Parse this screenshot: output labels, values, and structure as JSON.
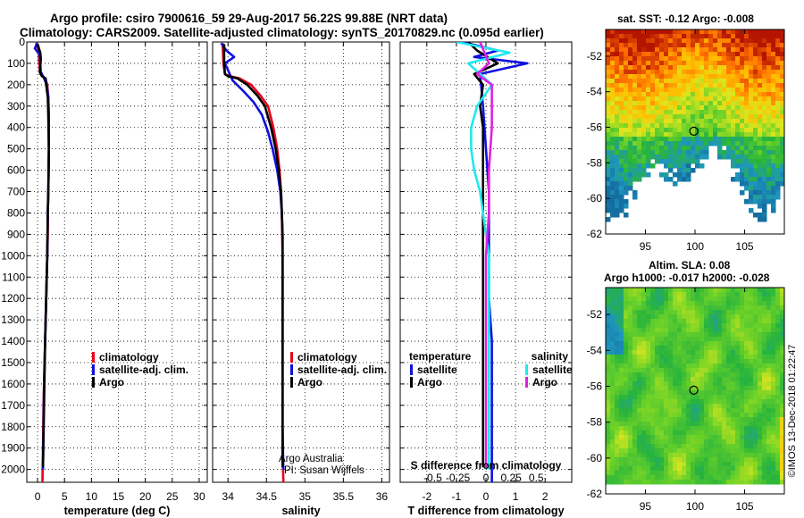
{
  "header": {
    "title_line1": "Argo profile: csiro 7900616_59 29-Aug-2017 56.22S 99.88E (NRT data)",
    "title_line2": "Climatology: CARS2009. Satellite-adjusted climatology: synTS_20170829.nc (0.095d earlier)"
  },
  "credits": {
    "line1": "Argo Australia",
    "line2": "PI: Susan Wijffels",
    "stamp": "©IMOS 13-Dec-2018 01:22:47"
  },
  "colors": {
    "climatology": "#e8001a",
    "satellite": "#1010e0",
    "argo": "#000000",
    "sat_salinity": "#20e8f0",
    "argo_salinity": "#e020e0"
  },
  "chart_data": [
    {
      "type": "line",
      "id": "temperature",
      "xlabel": "temperature (deg C)",
      "ylabel": "",
      "xlim": [
        -2,
        31.5
      ],
      "ylim": [
        2060,
        0
      ],
      "x_ticks": [
        0,
        5,
        10,
        15,
        20,
        25,
        30
      ],
      "x_tick_labels": [
        "0",
        "5",
        "10",
        "15",
        "20",
        "25",
        "30"
      ],
      "y_ticks": [
        0,
        100,
        200,
        300,
        400,
        500,
        600,
        700,
        800,
        900,
        1000,
        1100,
        1200,
        1300,
        1400,
        1500,
        1600,
        1700,
        1800,
        1900,
        2000
      ],
      "y_tick_labels": [
        "0",
        "100",
        "200",
        "300",
        "400",
        "500",
        "600",
        "700",
        "800",
        "900",
        "1000",
        "1100",
        "1200",
        "1300",
        "1400",
        "1500",
        "1600",
        "1700",
        "1800",
        "1900",
        "2000"
      ],
      "grid": true,
      "legend": [
        "climatology",
        "satellite-adj. clim.",
        "Argo"
      ],
      "legend_position": "center-right",
      "series": [
        {
          "name": "climatology",
          "color": "#e8001a",
          "x": [
            -0.3,
            0.2,
            0.3,
            0.5,
            1.4,
            1.8,
            2.0,
            2.1,
            2.1,
            2.0,
            1.9,
            1.9,
            1.8,
            1.7,
            1.6,
            1.5,
            1.4,
            1.3,
            1.2,
            1.1,
            1.0,
            0.9
          ],
          "y": [
            5,
            40,
            100,
            150,
            170,
            200,
            260,
            350,
            500,
            700,
            800,
            900,
            1000,
            1100,
            1200,
            1300,
            1400,
            1500,
            1600,
            1700,
            1900,
            2060
          ]
        },
        {
          "name": "satellite-adj. clim.",
          "color": "#1010e0",
          "x": [
            -0.1,
            -0.5,
            0.4,
            0.6,
            1.2,
            1.7,
            2.0,
            2.1,
            2.1,
            2.0,
            1.9,
            1.8,
            1.7,
            1.6,
            1.5,
            1.4,
            1.3,
            1.2,
            1.1,
            1.0
          ],
          "y": [
            5,
            30,
            60,
            140,
            170,
            200,
            260,
            350,
            500,
            700,
            800,
            1000,
            1100,
            1200,
            1300,
            1400,
            1500,
            1600,
            1800,
            2000
          ]
        },
        {
          "name": "Argo",
          "color": "#000000",
          "x": [
            0.0,
            0.5,
            0.6,
            0.4,
            0.8,
            1.5,
            1.6,
            1.9,
            2.0,
            2.1,
            2.0,
            1.9,
            1.8,
            1.6,
            1.4,
            1.2,
            1.0
          ],
          "y": [
            10,
            50,
            80,
            140,
            160,
            170,
            200,
            260,
            350,
            500,
            700,
            800,
            1000,
            1200,
            1400,
            1700,
            1990
          ]
        }
      ]
    },
    {
      "type": "line",
      "id": "salinity",
      "xlabel": "salinity",
      "xlim": [
        33.8,
        36.1
      ],
      "ylim": [
        2060,
        0
      ],
      "x_ticks": [
        34,
        34.5,
        35,
        35.5,
        36
      ],
      "x_tick_labels": [
        "34",
        "34.5",
        "35",
        "35.5",
        "36"
      ],
      "grid": true,
      "legend": [
        "climatology",
        "satellite-adj. clim.",
        "Argo"
      ],
      "legend_position": "center-right",
      "series": [
        {
          "name": "climatology",
          "color": "#e8001a",
          "x": [
            33.93,
            33.94,
            33.96,
            34.02,
            34.15,
            34.3,
            34.42,
            34.52,
            34.59,
            34.64,
            34.67,
            34.69,
            34.7,
            34.71,
            34.71,
            34.71,
            34.71,
            34.71,
            34.71,
            34.72
          ],
          "y": [
            5,
            100,
            150,
            160,
            170,
            200,
            250,
            300,
            400,
            500,
            600,
            700,
            800,
            1000,
            1200,
            1400,
            1600,
            1800,
            1900,
            2060
          ]
        },
        {
          "name": "satellite-adj. clim.",
          "color": "#1010e0",
          "x": [
            33.91,
            33.98,
            34.08,
            33.96,
            34.06,
            34.2,
            34.33,
            34.44,
            34.52,
            34.58,
            34.64,
            34.68,
            34.7,
            34.71,
            34.71,
            34.71,
            34.71,
            34.71,
            34.71,
            34.72
          ],
          "y": [
            5,
            40,
            70,
            100,
            180,
            230,
            280,
            340,
            420,
            500,
            600,
            700,
            800,
            900,
            1000,
            1200,
            1400,
            1600,
            1800,
            2000
          ]
        },
        {
          "name": "Argo",
          "color": "#000000",
          "x": [
            33.95,
            33.95,
            33.96,
            34.0,
            34.12,
            34.25,
            34.38,
            34.48,
            34.56,
            34.62,
            34.66,
            34.69,
            34.7,
            34.71,
            34.71,
            34.71,
            34.71,
            34.71,
            34.71
          ],
          "y": [
            10,
            100,
            150,
            160,
            170,
            200,
            250,
            300,
            400,
            500,
            600,
            700,
            800,
            900,
            1000,
            1200,
            1400,
            1600,
            1990
          ]
        }
      ]
    },
    {
      "type": "line",
      "id": "difference",
      "xlabel": "T difference from climatology",
      "xlabel2": "S difference from climatology",
      "xlim": [
        -2.9,
        2.9
      ],
      "ylim": [
        2060,
        0
      ],
      "x_ticks": [
        -2,
        -1,
        0,
        1,
        2
      ],
      "x_tick_labels": [
        "-2",
        "-1",
        "0",
        "1",
        "2"
      ],
      "x2_tick_labels": [
        "-0.5",
        "-0.25",
        "0",
        "0.25",
        "0.5"
      ],
      "grid": true,
      "legend_temperature": {
        "title": "temperature",
        "items": [
          "satellite",
          "Argo"
        ]
      },
      "legend_salinity": {
        "title": "salinity",
        "items": [
          "satellite",
          "Argo"
        ]
      },
      "series": [
        {
          "name": "temperature satellite",
          "color": "#1010e0",
          "x": [
            -0.8,
            0.4,
            -0.4,
            1.4,
            -0.2,
            -0.1,
            0.0,
            0.1,
            0.1,
            0.1,
            0.1,
            0.2,
            0.2,
            0.2,
            0.2,
            0.2,
            0.2
          ],
          "y": [
            0,
            40,
            70,
            100,
            150,
            300,
            500,
            700,
            800,
            1000,
            1200,
            1400,
            1600,
            1800,
            1900,
            2000,
            2060
          ]
        },
        {
          "name": "temperature Argo",
          "color": "#000000",
          "x": [
            -0.6,
            -0.3,
            0.4,
            -0.4,
            -0.1,
            -0.2,
            -0.1,
            -0.1,
            -0.1,
            -0.1,
            -0.1,
            -0.1,
            -0.1,
            -0.1,
            -0.1,
            -0.1
          ],
          "y": [
            0,
            40,
            100,
            150,
            200,
            300,
            400,
            500,
            700,
            900,
            1100,
            1300,
            1500,
            1700,
            1900,
            1990
          ]
        },
        {
          "name": "salinity satellite",
          "color": "#20e8f0",
          "x": [
            -1.0,
            0.8,
            -0.6,
            0.2,
            -0.3,
            -0.5,
            -0.5,
            -0.4,
            -0.2,
            -0.1,
            0.0,
            0.1,
            0.1,
            0.1,
            0.1,
            0.1,
            0.1,
            0.1
          ],
          "y": [
            0,
            50,
            100,
            200,
            300,
            400,
            500,
            600,
            700,
            800,
            900,
            1000,
            1200,
            1400,
            1600,
            1800,
            1900,
            2000
          ]
        },
        {
          "name": "salinity Argo",
          "color": "#e020e0",
          "x": [
            -0.2,
            0.1,
            -0.3,
            0.2,
            0.2,
            0.1,
            0.1,
            0.0,
            0.0,
            0.0,
            0.0
          ],
          "y": [
            0,
            100,
            150,
            200,
            400,
            600,
            800,
            1000,
            1200,
            1400,
            1990
          ]
        }
      ]
    },
    {
      "type": "heatmap",
      "id": "sst-map",
      "title": "sat. SST: -0.12 Argo: -0.008",
      "xlim": [
        91,
        109
      ],
      "ylim": [
        -62,
        -50.5
      ],
      "x_ticks": [
        95,
        100,
        105
      ],
      "x_tick_labels": [
        "95",
        "100",
        "105"
      ],
      "y_ticks": [
        -52,
        -54,
        -56,
        -58,
        -60,
        -62
      ],
      "y_tick_labels": [
        "-52",
        "-54",
        "-56",
        "-58",
        "-60",
        "-62"
      ],
      "marker": {
        "lon": 99.88,
        "lat": -56.22
      }
    },
    {
      "type": "heatmap",
      "id": "sla-map",
      "title_line1": "Altim. SLA: 0.08",
      "title_line2": "Argo h1000: -0.017 h2000: -0.028",
      "xlim": [
        91,
        109
      ],
      "ylim": [
        -62,
        -50.5
      ],
      "x_ticks": [
        95,
        100,
        105
      ],
      "x_tick_labels": [
        "95",
        "100",
        "105"
      ],
      "y_ticks": [
        -52,
        -54,
        -56,
        -58,
        -60,
        -62
      ],
      "y_tick_labels": [
        "-52",
        "-54",
        "-56",
        "-58",
        "-60",
        "-62"
      ],
      "marker": {
        "lon": 99.88,
        "lat": -56.22
      }
    }
  ]
}
